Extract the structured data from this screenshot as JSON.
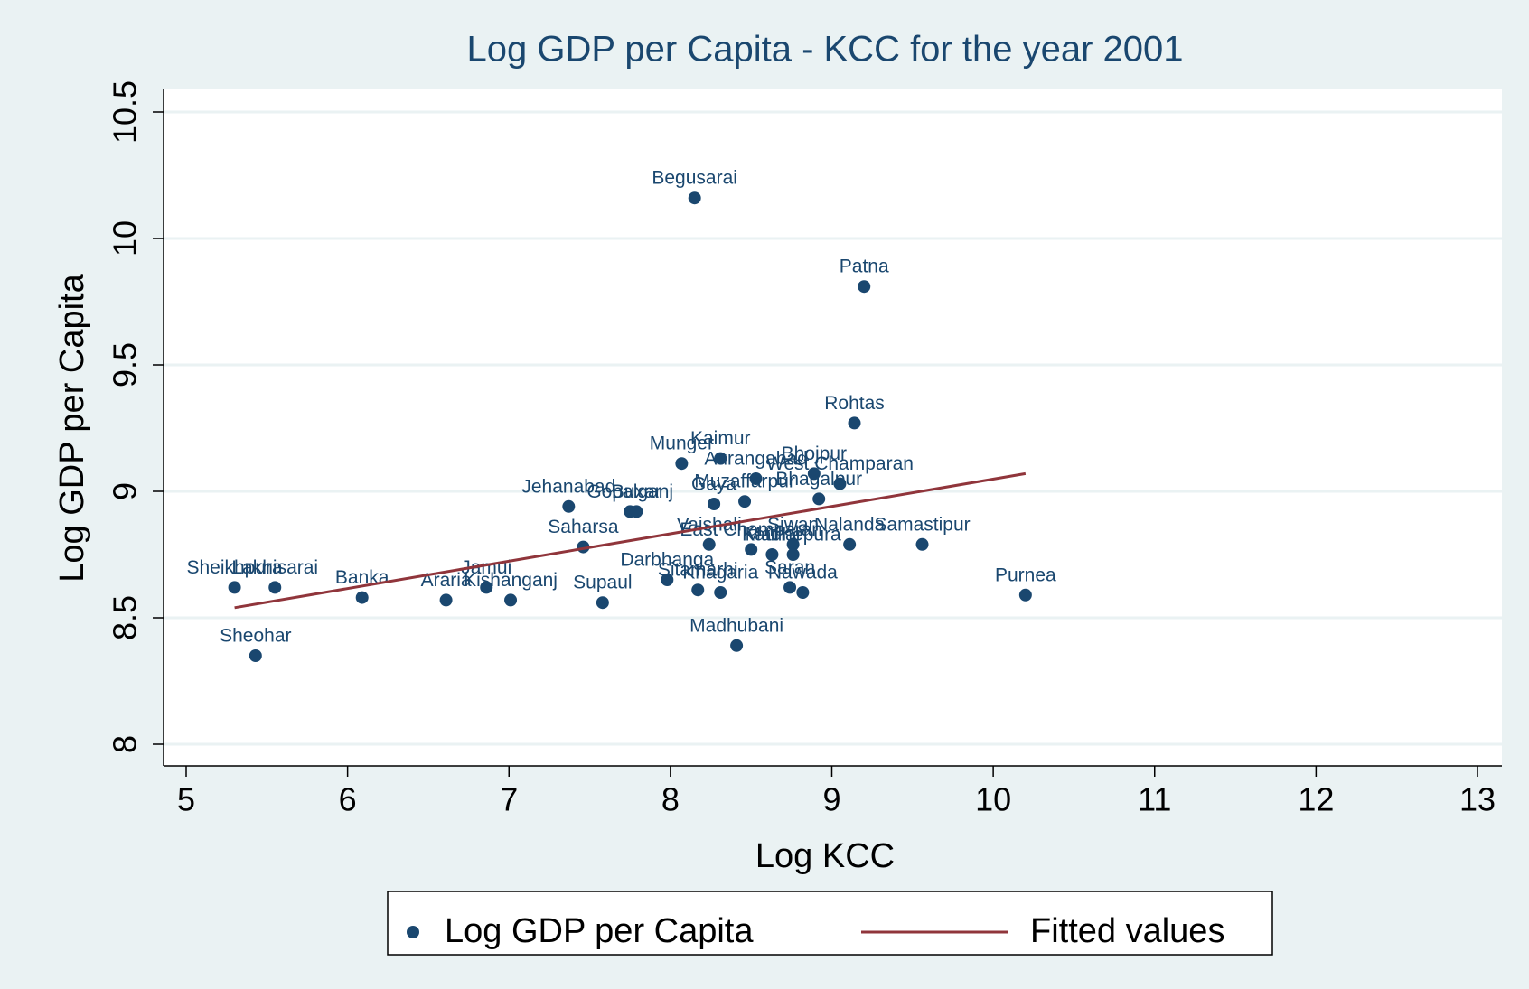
{
  "chart_data": {
    "type": "scatter",
    "title": "Log GDP per Capita -  KCC for the year 2001",
    "x_label": "Log KCC",
    "y_label": "Log GDP per Capita",
    "xlim": [
      5,
      13
    ],
    "ylim": [
      8,
      10.5
    ],
    "xticks": [
      5,
      6,
      7,
      8,
      9,
      10,
      11,
      12,
      13
    ],
    "yticks": [
      8,
      8.5,
      9,
      9.5,
      10,
      10.5
    ],
    "grid": true,
    "legend": "bottom",
    "series": [
      {
        "name": "Log GDP per Capita",
        "color": "#1a476f",
        "labels": [
          "Begusarai",
          "Patna",
          "Rohtas",
          "Kaimur",
          "Munger",
          "Aurangabad",
          "Bhojpur",
          "West Champaran",
          "Bhagalpur",
          "Muzaffarpur",
          "Gaya",
          "Jehanabad",
          "Gopalganj",
          "Buxar",
          "Samastipur",
          "Nalanda",
          "Siwan",
          "Vaishali",
          "East Champaran",
          "Katihar",
          "Madhepura",
          "Saharsa",
          "Purnea",
          "Darbhanga",
          "Sheikhpura",
          "Lakhisarai",
          "Banka",
          "Araria",
          "Jamui",
          "Kishanganj",
          "Supaul",
          "Sheohar",
          "Madhubani",
          "Sitamarhi",
          "Khagaria",
          "Saran",
          "Nawada"
        ],
        "x": [
          8.15,
          9.2,
          9.14,
          8.31,
          8.07,
          8.53,
          8.89,
          9.05,
          8.92,
          8.46,
          8.27,
          7.37,
          7.75,
          7.79,
          9.56,
          9.11,
          8.76,
          8.24,
          8.5,
          8.63,
          8.76,
          7.46,
          10.2,
          7.98,
          5.3,
          5.55,
          6.09,
          6.61,
          6.86,
          7.01,
          7.58,
          5.43,
          8.41,
          8.17,
          8.31,
          8.74,
          8.82
        ],
        "values": [
          10.16,
          9.81,
          9.27,
          9.13,
          9.11,
          9.05,
          9.07,
          9.03,
          8.97,
          8.96,
          8.95,
          8.94,
          8.92,
          8.92,
          8.79,
          8.79,
          8.79,
          8.79,
          8.77,
          8.75,
          8.75,
          8.78,
          8.59,
          8.65,
          8.62,
          8.62,
          8.58,
          8.57,
          8.62,
          8.57,
          8.56,
          8.35,
          8.39,
          8.61,
          8.6,
          8.62,
          8.6
        ]
      },
      {
        "name": "Fitted values",
        "color": "#90353b",
        "type": "line",
        "x": [
          5.3,
          10.2
        ],
        "values": [
          8.54,
          9.07
        ]
      }
    ]
  }
}
